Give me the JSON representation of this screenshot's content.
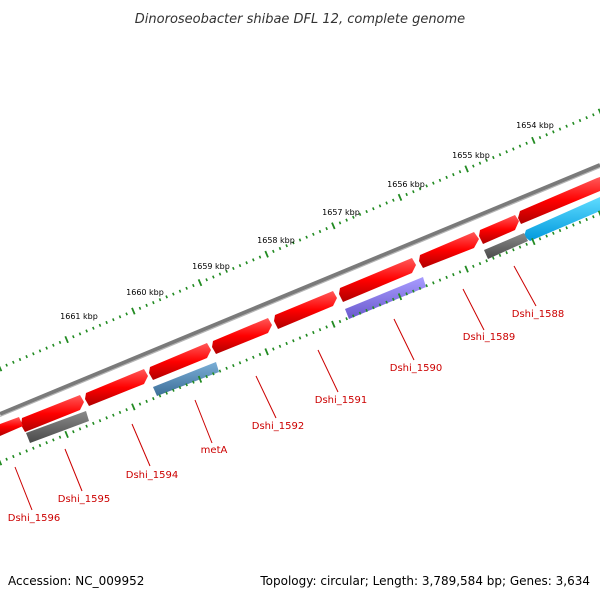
{
  "title": "Dinoroseobacter shibae DFL 12, complete genome",
  "footer": {
    "accession": "Accession: NC_009952",
    "topology": "Topology: circular; Length: 3,789,584 bp; Genes: 3,634"
  },
  "colors": {
    "backbone": "#808080",
    "cds": "#ff0000",
    "trna": "#4682b4",
    "rrna_like": "#8470ff",
    "other_rna": "#00bfff",
    "pseudo": "#666666",
    "ticks": "#228b22",
    "label": "#cc0000"
  },
  "kbp_labels": [
    {
      "text": "1654 kbp"
    },
    {
      "text": "1655 kbp"
    },
    {
      "text": "1656 kbp"
    },
    {
      "text": "1657 kbp"
    },
    {
      "text": "1658 kbp"
    },
    {
      "text": "1659 kbp"
    },
    {
      "text": "1660 kbp"
    },
    {
      "text": "1661 kbp"
    }
  ],
  "gene_labels": [
    {
      "text": "Dshi_1588"
    },
    {
      "text": "Dshi_1589"
    },
    {
      "text": "Dshi_1590"
    },
    {
      "text": "Dshi_1591"
    },
    {
      "text": "Dshi_1592"
    },
    {
      "text": "metA"
    },
    {
      "text": "Dshi_1594"
    },
    {
      "text": "Dshi_1595"
    },
    {
      "text": "Dshi_1596"
    }
  ]
}
